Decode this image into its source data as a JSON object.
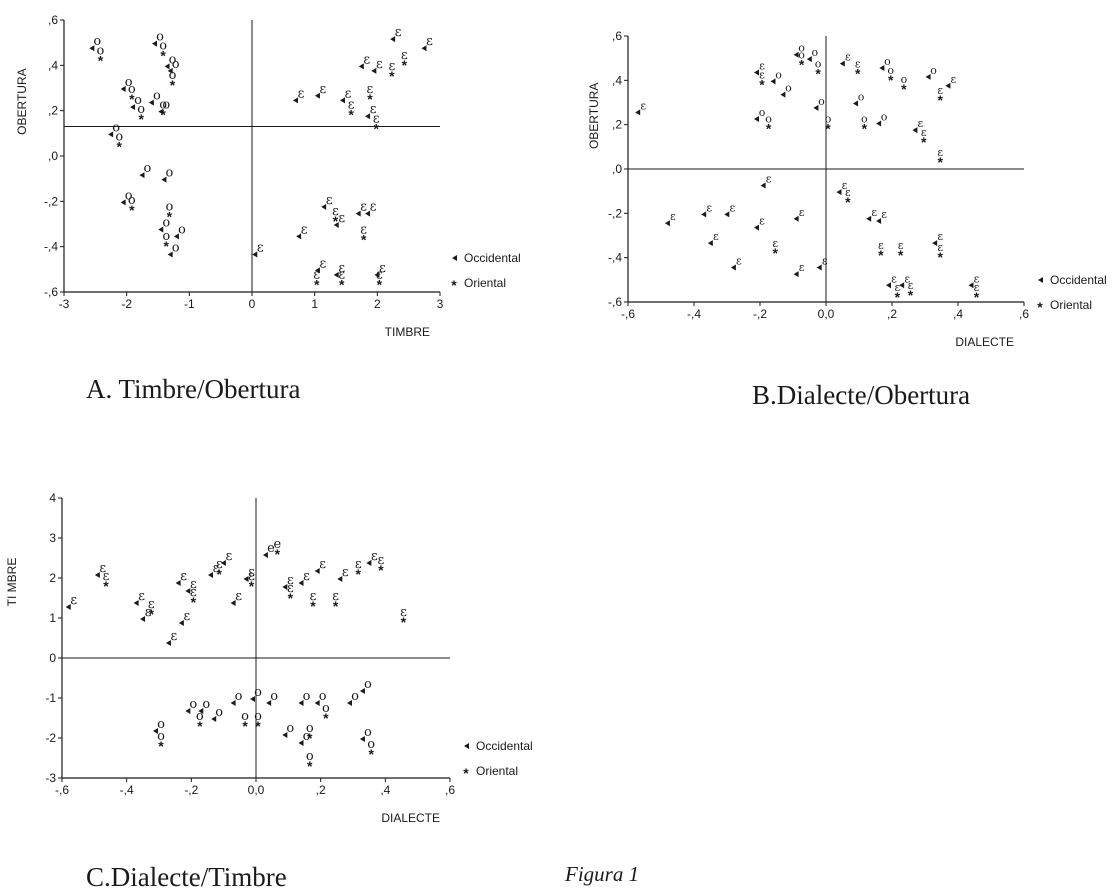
{
  "figure_caption": "Figura 1",
  "panels": [
    {
      "caption": "A. Timbre/Obertura",
      "xlabel": "TIMBRE",
      "ylabel": "OBERTURA",
      "xlim": [
        -3,
        3
      ],
      "ylim": [
        -0.6,
        0.6
      ],
      "xticks": [
        "-3",
        "-2",
        "-1",
        "0",
        "1",
        "2",
        "3"
      ],
      "yticks": [
        ",6",
        ",4",
        ",2",
        ",0",
        "-,2",
        "-,4",
        "-,6"
      ],
      "legend": [
        "Occidental",
        "Oriental"
      ]
    },
    {
      "caption": "B.Dialecte/Obertura",
      "xlabel": "DIALECTE",
      "ylabel": "OBERTURA",
      "xlim": [
        -0.6,
        0.6
      ],
      "ylim": [
        -0.6,
        0.6
      ],
      "xticks": [
        "-,6",
        "-,4",
        "-,2",
        "0,0",
        ",2",
        ",4",
        ",6"
      ],
      "yticks": [
        ",6",
        ",4",
        ",2",
        ",0",
        "-,2",
        "-,4",
        "-,6"
      ],
      "legend": [
        "Occidental",
        "Oriental"
      ]
    },
    {
      "caption": "C.Dialecte/Timbre",
      "xlabel": "DIALECTE",
      "ylabel": "TI MBRE",
      "xlim": [
        -0.6,
        0.6
      ],
      "ylim": [
        -3,
        4
      ],
      "xticks": [
        "-,6",
        "-,4",
        "-,2",
        "0,0",
        ",2",
        ",4",
        ",6"
      ],
      "yticks": [
        "4",
        "3",
        "2",
        "1",
        "0",
        "-1",
        "-2",
        "-3"
      ],
      "legend": [
        "Occidental",
        "Oriental"
      ]
    }
  ],
  "chart_data": [
    {
      "type": "scatter",
      "title": "A. Timbre/Obertura",
      "xlabel": "TIMBRE",
      "ylabel": "OBERTURA",
      "xlim": [
        -3,
        3
      ],
      "ylim": [
        -0.6,
        0.6
      ],
      "reference_lines": {
        "x": 0,
        "y": 0.13
      },
      "legend_position": "right",
      "series": [
        {
          "name": "Occidental",
          "marker": "◂",
          "points": [
            {
              "x": -2.5,
              "y": 0.48,
              "label": "o"
            },
            {
              "x": -2.0,
              "y": 0.3,
              "label": "o"
            },
            {
              "x": -1.85,
              "y": 0.22,
              "label": "o"
            },
            {
              "x": -1.5,
              "y": 0.5,
              "label": "o"
            },
            {
              "x": -1.55,
              "y": 0.24,
              "label": "o"
            },
            {
              "x": -1.4,
              "y": 0.2,
              "label": "o"
            },
            {
              "x": -1.3,
              "y": 0.4,
              "label": "o"
            },
            {
              "x": -1.25,
              "y": 0.38,
              "label": "o"
            },
            {
              "x": -2.2,
              "y": 0.1,
              "label": "o"
            },
            {
              "x": 0.75,
              "y": 0.25,
              "label": "ε"
            },
            {
              "x": 1.1,
              "y": 0.27,
              "label": "ε"
            },
            {
              "x": 1.5,
              "y": 0.25,
              "label": "ε"
            },
            {
              "x": 1.8,
              "y": 0.4,
              "label": "ε"
            },
            {
              "x": 2.0,
              "y": 0.38,
              "label": "ε"
            },
            {
              "x": 2.3,
              "y": 0.52,
              "label": "ε"
            },
            {
              "x": 2.8,
              "y": 0.48,
              "label": "ε"
            },
            {
              "x": 1.9,
              "y": 0.18,
              "label": "ε"
            },
            {
              "x": -1.7,
              "y": -0.08,
              "label": "o"
            },
            {
              "x": -2.0,
              "y": -0.2,
              "label": "o"
            },
            {
              "x": -1.35,
              "y": -0.1,
              "label": "o"
            },
            {
              "x": -1.4,
              "y": -0.32,
              "label": "o"
            },
            {
              "x": -1.15,
              "y": -0.35,
              "label": "o"
            },
            {
              "x": -1.25,
              "y": -0.43,
              "label": "o"
            },
            {
              "x": 0.1,
              "y": -0.43,
              "label": "ε"
            },
            {
              "x": 0.8,
              "y": -0.35,
              "label": "ε"
            },
            {
              "x": 1.2,
              "y": -0.22,
              "label": "ε"
            },
            {
              "x": 1.4,
              "y": -0.3,
              "label": "ε"
            },
            {
              "x": 1.75,
              "y": -0.25,
              "label": "ε"
            },
            {
              "x": 1.9,
              "y": -0.25,
              "label": "ε"
            },
            {
              "x": 1.1,
              "y": -0.5,
              "label": "ε"
            },
            {
              "x": 1.4,
              "y": -0.52,
              "label": "ε"
            },
            {
              "x": 2.05,
              "y": -0.52,
              "label": "ε"
            }
          ]
        },
        {
          "name": "Oriental",
          "marker": "*",
          "points": [
            {
              "x": -2.45,
              "y": 0.44,
              "label": "o"
            },
            {
              "x": -1.95,
              "y": 0.27,
              "label": "o"
            },
            {
              "x": -1.8,
              "y": 0.18,
              "label": "o"
            },
            {
              "x": -1.45,
              "y": 0.46,
              "label": "o"
            },
            {
              "x": -1.45,
              "y": 0.2,
              "label": "o"
            },
            {
              "x": -1.3,
              "y": 0.33,
              "label": "o"
            },
            {
              "x": -2.15,
              "y": 0.06,
              "label": "o"
            },
            {
              "x": 1.55,
              "y": 0.2,
              "label": "ε"
            },
            {
              "x": 1.85,
              "y": 0.27,
              "label": "ε"
            },
            {
              "x": 2.2,
              "y": 0.37,
              "label": "ε"
            },
            {
              "x": 2.4,
              "y": 0.42,
              "label": "ε"
            },
            {
              "x": 1.95,
              "y": 0.14,
              "label": "ε"
            },
            {
              "x": -1.95,
              "y": -0.22,
              "label": "o"
            },
            {
              "x": -1.35,
              "y": -0.25,
              "label": "o"
            },
            {
              "x": -1.4,
              "y": -0.38,
              "label": "o"
            },
            {
              "x": 1.3,
              "y": -0.27,
              "label": "ε"
            },
            {
              "x": 1.75,
              "y": -0.35,
              "label": "ε"
            },
            {
              "x": 1.0,
              "y": -0.55,
              "label": "ε"
            },
            {
              "x": 1.4,
              "y": -0.55,
              "label": "ε"
            },
            {
              "x": 2.0,
              "y": -0.55,
              "label": "ε"
            }
          ]
        }
      ]
    },
    {
      "type": "scatter",
      "title": "B.Dialecte/Obertura",
      "xlabel": "DIALECTE",
      "ylabel": "OBERTURA",
      "xlim": [
        -0.6,
        0.6
      ],
      "ylim": [
        -0.6,
        0.6
      ],
      "reference_lines": {
        "x": 0,
        "y": 0
      },
      "legend_position": "right",
      "series": [
        {
          "name": "Occidental",
          "marker": "◂",
          "points": [
            {
              "x": -0.56,
              "y": 0.26,
              "label": "ε"
            },
            {
              "x": -0.2,
              "y": 0.44,
              "label": "ε"
            },
            {
              "x": -0.15,
              "y": 0.4,
              "label": "o"
            },
            {
              "x": -0.08,
              "y": 0.52,
              "label": "o"
            },
            {
              "x": -0.04,
              "y": 0.5,
              "label": "o"
            },
            {
              "x": 0.06,
              "y": 0.48,
              "label": "ε"
            },
            {
              "x": 0.18,
              "y": 0.46,
              "label": "o"
            },
            {
              "x": 0.32,
              "y": 0.42,
              "label": "o"
            },
            {
              "x": 0.38,
              "y": 0.38,
              "label": "ε"
            },
            {
              "x": -0.2,
              "y": 0.23,
              "label": "o"
            },
            {
              "x": -0.12,
              "y": 0.34,
              "label": "o"
            },
            {
              "x": -0.02,
              "y": 0.28,
              "label": "o"
            },
            {
              "x": 0.1,
              "y": 0.3,
              "label": "o"
            },
            {
              "x": 0.17,
              "y": 0.21,
              "label": "o"
            },
            {
              "x": 0.28,
              "y": 0.18,
              "label": "ε"
            },
            {
              "x": -0.18,
              "y": -0.07,
              "label": "ε"
            },
            {
              "x": 0.05,
              "y": -0.1,
              "label": "ε"
            },
            {
              "x": -0.47,
              "y": -0.24,
              "label": "ε"
            },
            {
              "x": -0.36,
              "y": -0.2,
              "label": "ε"
            },
            {
              "x": -0.29,
              "y": -0.2,
              "label": "ε"
            },
            {
              "x": -0.2,
              "y": -0.26,
              "label": "ε"
            },
            {
              "x": -0.08,
              "y": -0.22,
              "label": "ε"
            },
            {
              "x": 0.14,
              "y": -0.22,
              "label": "ε"
            },
            {
              "x": 0.17,
              "y": -0.23,
              "label": "ε"
            },
            {
              "x": -0.34,
              "y": -0.33,
              "label": "ε"
            },
            {
              "x": -0.27,
              "y": -0.44,
              "label": "ε"
            },
            {
              "x": -0.08,
              "y": -0.47,
              "label": "ε"
            },
            {
              "x": -0.01,
              "y": -0.44,
              "label": "ε"
            },
            {
              "x": 0.2,
              "y": -0.52,
              "label": "ε"
            },
            {
              "x": 0.24,
              "y": -0.52,
              "label": "ε"
            },
            {
              "x": 0.45,
              "y": -0.52,
              "label": "ε"
            },
            {
              "x": 0.34,
              "y": -0.33,
              "label": "ε"
            }
          ]
        },
        {
          "name": "Oriental",
          "marker": "*",
          "points": [
            {
              "x": -0.2,
              "y": 0.4,
              "label": "ε"
            },
            {
              "x": -0.08,
              "y": 0.49,
              "label": "o"
            },
            {
              "x": -0.03,
              "y": 0.45,
              "label": "o"
            },
            {
              "x": 0.09,
              "y": 0.45,
              "label": "ε"
            },
            {
              "x": 0.19,
              "y": 0.42,
              "label": "o"
            },
            {
              "x": 0.23,
              "y": 0.38,
              "label": "o"
            },
            {
              "x": 0.34,
              "y": 0.33,
              "label": "ε"
            },
            {
              "x": -0.18,
              "y": 0.2,
              "label": "o"
            },
            {
              "x": 0.0,
              "y": 0.2,
              "label": "o"
            },
            {
              "x": 0.11,
              "y": 0.2,
              "label": "o"
            },
            {
              "x": 0.29,
              "y": 0.14,
              "label": "ε"
            },
            {
              "x": 0.34,
              "y": 0.05,
              "label": "ε"
            },
            {
              "x": 0.06,
              "y": -0.13,
              "label": "ε"
            },
            {
              "x": -0.16,
              "y": -0.36,
              "label": "ε"
            },
            {
              "x": 0.16,
              "y": -0.37,
              "label": "ε"
            },
            {
              "x": 0.22,
              "y": -0.37,
              "label": "ε"
            },
            {
              "x": 0.34,
              "y": -0.38,
              "label": "ε"
            },
            {
              "x": 0.21,
              "y": -0.56,
              "label": "ε"
            },
            {
              "x": 0.25,
              "y": -0.55,
              "label": "ε"
            },
            {
              "x": 0.45,
              "y": -0.56,
              "label": "ε"
            }
          ]
        }
      ]
    },
    {
      "type": "scatter",
      "title": "C.Dialecte/Timbre",
      "xlabel": "DIALECTE",
      "ylabel": "TI MBRE",
      "xlim": [
        -0.6,
        0.6
      ],
      "ylim": [
        -3,
        4
      ],
      "reference_lines": {
        "x": 0,
        "y": 0
      },
      "legend_position": "right",
      "series": [
        {
          "name": "Occidental",
          "marker": "◂",
          "points": [
            {
              "x": -0.57,
              "y": 1.3,
              "label": "ε"
            },
            {
              "x": -0.48,
              "y": 2.1,
              "label": "ε"
            },
            {
              "x": -0.36,
              "y": 1.4,
              "label": "ε"
            },
            {
              "x": -0.34,
              "y": 1.0,
              "label": "ε"
            },
            {
              "x": -0.26,
              "y": 0.4,
              "label": "ε"
            },
            {
              "x": -0.23,
              "y": 1.9,
              "label": "ε"
            },
            {
              "x": -0.2,
              "y": 1.7,
              "label": "ε"
            },
            {
              "x": -0.22,
              "y": 0.9,
              "label": "ε"
            },
            {
              "x": -0.13,
              "y": 2.1,
              "label": "ε"
            },
            {
              "x": -0.09,
              "y": 2.4,
              "label": "ε"
            },
            {
              "x": -0.06,
              "y": 1.4,
              "label": "ε"
            },
            {
              "x": -0.02,
              "y": 2.0,
              "label": "ε"
            },
            {
              "x": 0.04,
              "y": 2.6,
              "label": "e"
            },
            {
              "x": 0.1,
              "y": 1.8,
              "label": "ε"
            },
            {
              "x": 0.15,
              "y": 1.9,
              "label": "ε"
            },
            {
              "x": 0.2,
              "y": 2.2,
              "label": "ε"
            },
            {
              "x": 0.27,
              "y": 2.0,
              "label": "ε"
            },
            {
              "x": 0.36,
              "y": 2.4,
              "label": "ε"
            },
            {
              "x": -0.3,
              "y": -1.8,
              "label": "o"
            },
            {
              "x": -0.2,
              "y": -1.3,
              "label": "o"
            },
            {
              "x": -0.16,
              "y": -1.3,
              "label": "o"
            },
            {
              "x": -0.12,
              "y": -1.5,
              "label": "o"
            },
            {
              "x": -0.06,
              "y": -1.1,
              "label": "o"
            },
            {
              "x": 0.0,
              "y": -1.0,
              "label": "o"
            },
            {
              "x": 0.05,
              "y": -1.1,
              "label": "o"
            },
            {
              "x": 0.1,
              "y": -1.9,
              "label": "o"
            },
            {
              "x": 0.15,
              "y": -1.1,
              "label": "o"
            },
            {
              "x": 0.2,
              "y": -1.1,
              "label": "o"
            },
            {
              "x": 0.3,
              "y": -1.1,
              "label": "o"
            },
            {
              "x": 0.34,
              "y": -0.8,
              "label": "o"
            },
            {
              "x": 0.34,
              "y": -2.0,
              "label": "o"
            },
            {
              "x": 0.15,
              "y": -2.1,
              "label": "o"
            }
          ]
        },
        {
          "name": "Oriental",
          "marker": "*",
          "points": [
            {
              "x": -0.47,
              "y": 1.9,
              "label": "ε"
            },
            {
              "x": -0.33,
              "y": 1.2,
              "label": "ε"
            },
            {
              "x": -0.2,
              "y": 1.5,
              "label": "ε"
            },
            {
              "x": -0.12,
              "y": 2.2,
              "label": "ε"
            },
            {
              "x": -0.02,
              "y": 1.9,
              "label": "ε"
            },
            {
              "x": 0.06,
              "y": 2.7,
              "label": "e"
            },
            {
              "x": 0.1,
              "y": 1.6,
              "label": "ε"
            },
            {
              "x": 0.17,
              "y": 1.4,
              "label": "ε"
            },
            {
              "x": 0.24,
              "y": 1.4,
              "label": "ε"
            },
            {
              "x": 0.31,
              "y": 2.2,
              "label": "ε"
            },
            {
              "x": 0.38,
              "y": 2.3,
              "label": "ε"
            },
            {
              "x": 0.45,
              "y": 1.0,
              "label": "ε"
            },
            {
              "x": -0.3,
              "y": -2.1,
              "label": "o"
            },
            {
              "x": -0.18,
              "y": -1.6,
              "label": "o"
            },
            {
              "x": -0.04,
              "y": -1.6,
              "label": "o"
            },
            {
              "x": 0.0,
              "y": -1.6,
              "label": "o"
            },
            {
              "x": 0.16,
              "y": -1.9,
              "label": "o"
            },
            {
              "x": 0.21,
              "y": -1.4,
              "label": "o"
            },
            {
              "x": 0.35,
              "y": -2.3,
              "label": "o"
            },
            {
              "x": 0.16,
              "y": -2.6,
              "label": "o"
            }
          ]
        }
      ]
    }
  ]
}
